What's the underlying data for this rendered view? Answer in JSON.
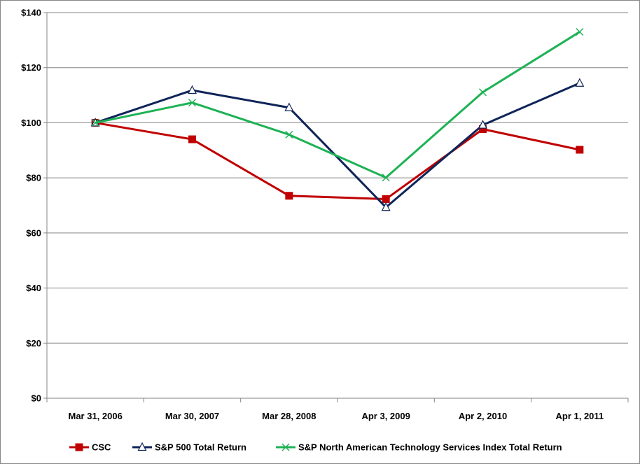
{
  "chart_data": {
    "type": "line",
    "title": "",
    "xlabel": "",
    "ylabel": "",
    "categories": [
      "Mar 31, 2006",
      "Mar 30, 2007",
      "Mar 28, 2008",
      "Apr 3, 2009",
      "Apr 2, 2010",
      "Apr 1, 2011"
    ],
    "y_ticks": [
      "$0",
      "$20",
      "$40",
      "$60",
      "$80",
      "$100",
      "$120",
      "$140"
    ],
    "ylim": [
      0,
      140
    ],
    "grid": "horizontal",
    "legend_position": "bottom",
    "series": [
      {
        "name": "CSC",
        "values": [
          100,
          94,
          73.5,
          72.3,
          97.7,
          90.2
        ],
        "color": "#C00000",
        "marker": "square"
      },
      {
        "name": "S&P 500 Total Return",
        "values": [
          100,
          111.8,
          105.5,
          69.3,
          99.2,
          114.4
        ],
        "color": "#0F2458",
        "marker": "triangle"
      },
      {
        "name": "S&P North American Technology Services Index Total Return",
        "values": [
          100,
          107.3,
          95.7,
          80.1,
          111.1,
          133
        ],
        "color": "#1DB254",
        "marker": "x"
      }
    ]
  }
}
